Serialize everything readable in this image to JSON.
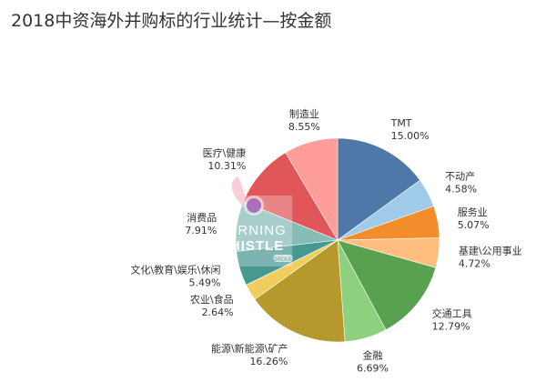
{
  "chart_data": {
    "type": "pie",
    "title": "2018中资海外并购标的行业统计—按金额",
    "slices": [
      {
        "label": "TMT",
        "value": "15.00%",
        "pct": 15.0,
        "color": "#4e78a7"
      },
      {
        "label": "不动产",
        "value": "4.58%",
        "pct": 4.58,
        "color": "#9fcae8"
      },
      {
        "label": "服务业",
        "value": "5.07%",
        "pct": 5.07,
        "color": "#f28d2c"
      },
      {
        "label": "基建\\公用事业",
        "value": "4.72%",
        "pct": 4.72,
        "color": "#ffbd7f"
      },
      {
        "label": "交通工具",
        "value": "12.79%",
        "pct": 12.79,
        "color": "#58a14e"
      },
      {
        "label": "金融",
        "value": "6.69%",
        "pct": 6.69,
        "color": "#8dd17f"
      },
      {
        "label": "能源\\新能源\\矿产",
        "value": "16.26%",
        "pct": 16.26,
        "color": "#b6992d"
      },
      {
        "label": "农业\\食品",
        "value": "2.64%",
        "pct": 2.64,
        "color": "#f1cd5d"
      },
      {
        "label": "文化\\教育\\娱乐\\休闲",
        "value": "5.49%",
        "pct": 5.49,
        "color": "#489892"
      },
      {
        "label": "消费品",
        "value": "7.91%",
        "pct": 7.91,
        "color": "#86bcb6"
      },
      {
        "label": "医疗\\健康",
        "value": "10.31%",
        "pct": 10.31,
        "color": "#e15659"
      },
      {
        "label": "制造业",
        "value": "8.55%",
        "pct": 8.55,
        "color": "#ff9d9a"
      }
    ]
  },
  "watermark": {
    "line1": "MORNING",
    "line2": "WHISTLE",
    "line3": "GROUP"
  }
}
